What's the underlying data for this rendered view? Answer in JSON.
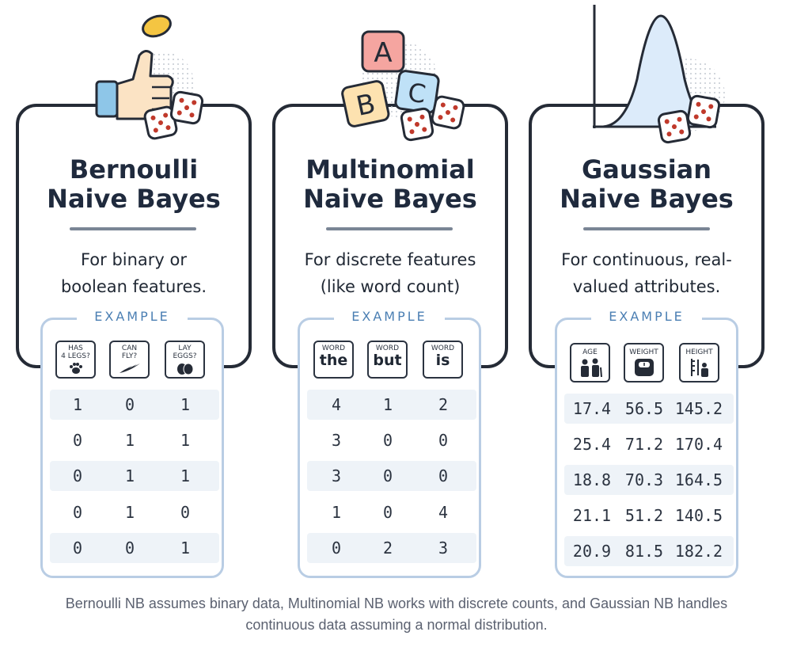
{
  "cards": [
    {
      "id": "bernoulli",
      "title_line1": "Bernoulli",
      "title_line2": "Naive Bayes",
      "desc_line1": "For binary or",
      "desc_line2": "boolean features.",
      "example_label": "EXAMPLE",
      "features": [
        {
          "label": "HAS 4 LEGS?",
          "line1": "HAS",
          "line2": "4 LEGS?",
          "icon": "paw-icon"
        },
        {
          "label": "CAN FLY?",
          "line1": "CAN",
          "line2": "FLY?",
          "icon": "wing-icon"
        },
        {
          "label": "LAY EGGS?",
          "line1": "LAY",
          "line2": "EGGS?",
          "icon": "eggs-icon"
        }
      ],
      "rows": [
        [
          "1",
          "0",
          "1"
        ],
        [
          "0",
          "1",
          "1"
        ],
        [
          "0",
          "1",
          "1"
        ],
        [
          "0",
          "1",
          "0"
        ],
        [
          "0",
          "0",
          "1"
        ]
      ]
    },
    {
      "id": "multinomial",
      "title_line1": "Multinomial",
      "title_line2": "Naive Bayes",
      "desc_line1": "For discrete features",
      "desc_line2": "(like word count)",
      "example_label": "EXAMPLE",
      "features": [
        {
          "label": "WORD",
          "word": "the"
        },
        {
          "label": "WORD",
          "word": "but"
        },
        {
          "label": "WORD",
          "word": "is"
        }
      ],
      "rows": [
        [
          "4",
          "1",
          "2"
        ],
        [
          "3",
          "0",
          "0"
        ],
        [
          "3",
          "0",
          "0"
        ],
        [
          "1",
          "0",
          "4"
        ],
        [
          "0",
          "2",
          "3"
        ]
      ]
    },
    {
      "id": "gaussian",
      "title_line1": "Gaussian",
      "title_line2": "Naive Bayes",
      "desc_line1": "For continuous, real-",
      "desc_line2": "valued attributes.",
      "example_label": "EXAMPLE",
      "features": [
        {
          "label": "AGE",
          "icon": "people-icon"
        },
        {
          "label": "WEIGHT",
          "icon": "scale-icon"
        },
        {
          "label": "HEIGHT",
          "icon": "height-icon"
        }
      ],
      "rows": [
        [
          "17.4",
          "56.5",
          "145.2"
        ],
        [
          "25.4",
          "71.2",
          "170.4"
        ],
        [
          "18.8",
          "70.3",
          "164.5"
        ],
        [
          "21.1",
          "51.2",
          "140.5"
        ],
        [
          "20.9",
          "81.5",
          "182.2"
        ]
      ]
    }
  ],
  "illustrations": {
    "bernoulli": {
      "icon": "thumb-coin-icon",
      "extra": "dice-icon"
    },
    "multinomial": {
      "icon": "abc-blocks-icon",
      "letters": [
        "A",
        "B",
        "C"
      ],
      "extra": "dice-icon"
    },
    "gaussian": {
      "icon": "bell-curve-icon",
      "extra": "dice-icon"
    }
  },
  "caption": {
    "line1": "Bernoulli NB assumes binary data, Multinomial NB works with discrete counts, and Gaussian NB handles",
    "line2": "continuous data assuming a normal distribution."
  },
  "colors": {
    "card_border": "#252b36",
    "example_border": "#b9cde4",
    "example_label": "#4b7fb3",
    "row_stripe": "#eef3f8",
    "coin": "#f4c542",
    "hand": "#fbe3c4",
    "cuff": "#8ec6e8",
    "block_a": "#f5a5a0",
    "block_b": "#fde2b0",
    "block_c": "#bfe1f7",
    "curve_fill": "#dcebfa"
  }
}
